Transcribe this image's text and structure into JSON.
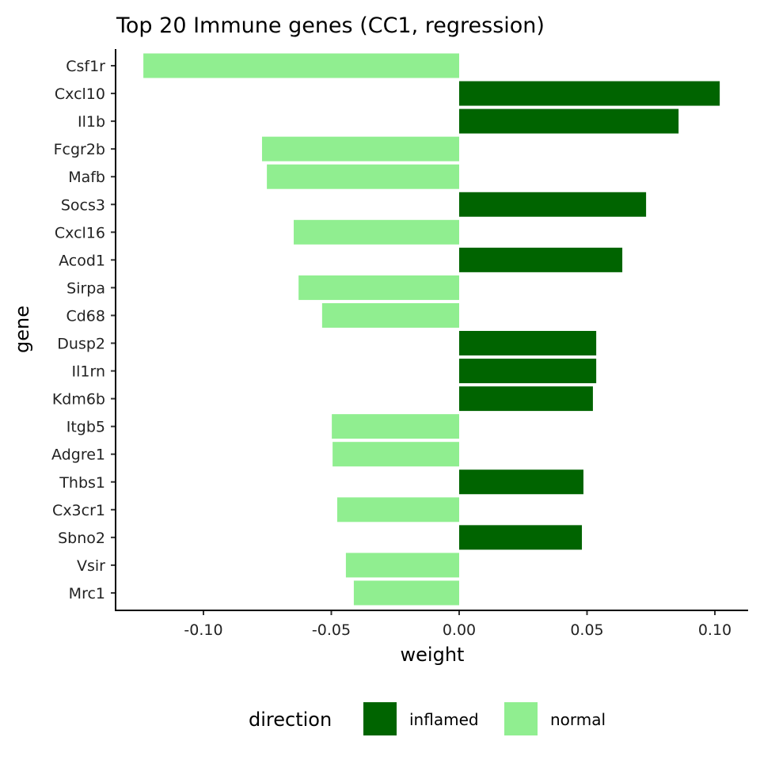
{
  "chart_data": {
    "type": "bar",
    "orientation": "horizontal",
    "title": "Top 20 Immune genes (CC1, regression)",
    "xlabel": "weight",
    "ylabel": "gene",
    "xlim": [
      -0.1355,
      0.1135
    ],
    "xticks": [
      -0.1,
      -0.05,
      0.0,
      0.05,
      0.1
    ],
    "xtick_labels": [
      "-0.10",
      "-0.05",
      "0.00",
      "0.05",
      "0.10"
    ],
    "grid": false,
    "legend": {
      "title": "direction",
      "placement": "bottom",
      "entries": [
        {
          "label": "inflamed",
          "color": "#006400"
        },
        {
          "label": "normal",
          "color": "#90EE90"
        }
      ]
    },
    "categories": [
      "Csf1r",
      "Cxcl10",
      "Il1b",
      "Fcgr2b",
      "Mafb",
      "Socs3",
      "Cxcl16",
      "Acod1",
      "Sirpa",
      "Cd68",
      "Dusp2",
      "Il1rn",
      "Kdm6b",
      "Itgb5",
      "Adgre1",
      "Thbs1",
      "Cx3cr1",
      "Sbno2",
      "Vsir",
      "Mrc1"
    ],
    "values": [
      -0.1235,
      0.1019,
      0.0858,
      -0.0771,
      -0.0752,
      0.0731,
      -0.0647,
      0.0638,
      -0.0628,
      -0.0536,
      0.0536,
      0.0536,
      0.0523,
      -0.0498,
      -0.0495,
      0.0486,
      -0.0477,
      0.048,
      -0.0443,
      -0.0412
    ],
    "direction": [
      "normal",
      "inflamed",
      "inflamed",
      "normal",
      "normal",
      "inflamed",
      "normal",
      "inflamed",
      "normal",
      "normal",
      "inflamed",
      "inflamed",
      "inflamed",
      "normal",
      "normal",
      "inflamed",
      "normal",
      "inflamed",
      "normal",
      "normal"
    ]
  }
}
